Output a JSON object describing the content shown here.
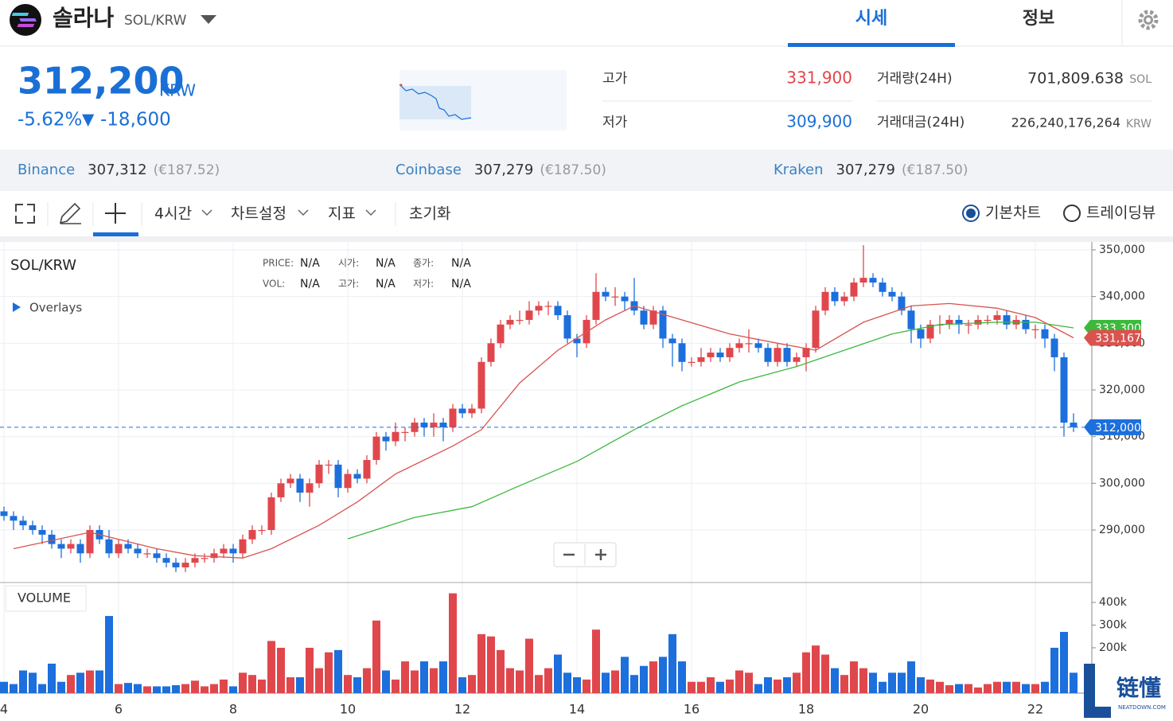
{
  "header": {
    "name": "솔라나",
    "pair": "SOL/KRW",
    "tabs": [
      "시세",
      "정보"
    ]
  },
  "price": {
    "value": "312,200",
    "unit": "KRW",
    "change_pct": "-5.62%",
    "arrow": "▼",
    "change": "-18,600"
  },
  "stats": [
    {
      "label": "고가",
      "value": "331,900"
    },
    {
      "label": "저가",
      "value": "309,900"
    },
    {
      "label": "거래량(24H)",
      "value": "701,809.638",
      "unit": "SOL"
    },
    {
      "label": "거래대금(24H)",
      "value": "226,240,176,264",
      "unit": "KRW"
    }
  ],
  "exchanges": [
    {
      "name": "Binance",
      "price": "307,312",
      "eur": "(€187.52)"
    },
    {
      "name": "Coinbase",
      "price": "307,279",
      "eur": "(€187.50)"
    },
    {
      "name": "Kraken",
      "price": "307,279",
      "eur": "(€187.50)"
    }
  ],
  "toolbar": {
    "interval": "4시간",
    "settings": "차트설정",
    "indicators": "지표",
    "reset": "초기화",
    "modes": [
      "기본차트",
      "트레이딩뷰"
    ]
  },
  "watermark": {
    "cn": "链懂",
    "en": "NEATDOWN.COM"
  },
  "chart_data": {
    "type": "candlestick",
    "title": "SOL/KRW",
    "overlays": "Overlays",
    "volume_label": "VOLUME",
    "info": [
      [
        "PRICE:",
        "N/A",
        "시가:",
        "N/A",
        "종가:",
        "N/A"
      ],
      [
        "VOL:",
        "N/A",
        "고가:",
        "N/A",
        "저가:",
        "N/A"
      ]
    ],
    "candles": [
      [
        294000,
        295000,
        292000,
        293000
      ],
      [
        293000,
        294000,
        290000,
        292000
      ],
      [
        292000,
        293000,
        290000,
        291000
      ],
      [
        291000,
        292000,
        289000,
        290000
      ],
      [
        290000,
        291000,
        287000,
        289000
      ],
      [
        289000,
        290000,
        286000,
        287000
      ],
      [
        287000,
        288000,
        284000,
        286000
      ],
      [
        286000,
        288000,
        285000,
        287000
      ],
      [
        287000,
        288000,
        283000,
        285000
      ],
      [
        285000,
        291000,
        284000,
        290000
      ],
      [
        290000,
        291000,
        287000,
        288000
      ],
      [
        288000,
        290000,
        284000,
        285000
      ],
      [
        285000,
        288000,
        284000,
        287000
      ],
      [
        287000,
        288000,
        285000,
        286000
      ],
      [
        286000,
        287000,
        284000,
        285000
      ],
      [
        285000,
        286000,
        284000,
        285000
      ],
      [
        285000,
        286000,
        283000,
        284000
      ],
      [
        284000,
        285000,
        282000,
        283000
      ],
      [
        283000,
        284000,
        281000,
        282000
      ],
      [
        282000,
        284000,
        281000,
        283000
      ],
      [
        283000,
        285000,
        282000,
        284000
      ],
      [
        284000,
        285000,
        283000,
        284000
      ],
      [
        284000,
        286000,
        283000,
        285000
      ],
      [
        285000,
        287000,
        284000,
        286000
      ],
      [
        286000,
        287000,
        283000,
        285000
      ],
      [
        285000,
        289000,
        284000,
        288000
      ],
      [
        288000,
        291000,
        287000,
        290000
      ],
      [
        290000,
        291000,
        289000,
        290000
      ],
      [
        290000,
        298000,
        289000,
        297000
      ],
      [
        297000,
        301000,
        296000,
        300000
      ],
      [
        300000,
        302000,
        299000,
        301000
      ],
      [
        301000,
        302000,
        296000,
        298000
      ],
      [
        298000,
        301000,
        295000,
        300000
      ],
      [
        300000,
        305000,
        299000,
        304000
      ],
      [
        304000,
        305000,
        302000,
        304000
      ],
      [
        304000,
        305000,
        297000,
        299000
      ],
      [
        299000,
        303000,
        298000,
        302000
      ],
      [
        302000,
        303000,
        300000,
        301000
      ],
      [
        301000,
        306000,
        300000,
        305000
      ],
      [
        305000,
        311000,
        304000,
        310000
      ],
      [
        310000,
        311000,
        307000,
        309000
      ],
      [
        309000,
        313000,
        308000,
        311000
      ],
      [
        311000,
        312000,
        309000,
        311000
      ],
      [
        311000,
        314000,
        310000,
        313000
      ],
      [
        313000,
        314000,
        310000,
        312000
      ],
      [
        312000,
        315000,
        310000,
        313000
      ],
      [
        313000,
        314000,
        309000,
        312000
      ],
      [
        312000,
        317000,
        311000,
        316000
      ],
      [
        316000,
        317000,
        314000,
        315000
      ],
      [
        315000,
        317000,
        314000,
        316000
      ],
      [
        316000,
        327000,
        315000,
        326000
      ],
      [
        326000,
        331000,
        325000,
        330000
      ],
      [
        330000,
        335000,
        329000,
        334000
      ],
      [
        334000,
        336000,
        333000,
        335000
      ],
      [
        335000,
        337000,
        334000,
        335000
      ],
      [
        335000,
        339000,
        334000,
        337000
      ],
      [
        337000,
        339000,
        336000,
        338000
      ],
      [
        338000,
        339000,
        336000,
        338000
      ],
      [
        338000,
        339000,
        335000,
        336000
      ],
      [
        336000,
        337000,
        330000,
        331000
      ],
      [
        331000,
        332000,
        327000,
        330000
      ],
      [
        330000,
        336000,
        329000,
        335000
      ],
      [
        335000,
        345000,
        334000,
        341000
      ],
      [
        341000,
        342000,
        339000,
        340000
      ],
      [
        340000,
        342000,
        338000,
        340000
      ],
      [
        340000,
        341000,
        337000,
        339000
      ],
      [
        339000,
        344000,
        336000,
        337000
      ],
      [
        337000,
        338000,
        333000,
        334000
      ],
      [
        334000,
        338000,
        333000,
        337000
      ],
      [
        337000,
        338000,
        329000,
        331000
      ],
      [
        331000,
        332000,
        325000,
        330000
      ],
      [
        330000,
        331000,
        324000,
        326000
      ],
      [
        326000,
        327000,
        325000,
        326000
      ],
      [
        326000,
        329000,
        325000,
        327000
      ],
      [
        327000,
        329000,
        326000,
        328000
      ],
      [
        328000,
        329000,
        326000,
        327000
      ],
      [
        327000,
        330000,
        326000,
        329000
      ],
      [
        329000,
        331000,
        328000,
        330000
      ],
      [
        330000,
        333000,
        328000,
        330000
      ],
      [
        330000,
        331000,
        328000,
        329000
      ],
      [
        329000,
        330000,
        325000,
        326000
      ],
      [
        326000,
        330000,
        325000,
        329000
      ],
      [
        329000,
        330000,
        325000,
        326000
      ],
      [
        326000,
        328000,
        325000,
        327000
      ],
      [
        327000,
        330000,
        324000,
        329000
      ],
      [
        329000,
        338000,
        328000,
        337000
      ],
      [
        337000,
        342000,
        336000,
        341000
      ],
      [
        341000,
        342000,
        338000,
        339000
      ],
      [
        339000,
        341000,
        338000,
        340000
      ],
      [
        340000,
        344000,
        339000,
        343000
      ],
      [
        343000,
        351000,
        342000,
        344000
      ],
      [
        344000,
        345000,
        342000,
        343000
      ],
      [
        343000,
        344000,
        340000,
        341000
      ],
      [
        341000,
        342000,
        339000,
        340000
      ],
      [
        340000,
        341000,
        336000,
        337000
      ],
      [
        337000,
        338000,
        330000,
        333000
      ],
      [
        333000,
        334000,
        329000,
        331000
      ],
      [
        331000,
        335000,
        330000,
        334000
      ],
      [
        334000,
        336000,
        332000,
        334000
      ],
      [
        334000,
        336000,
        333000,
        335000
      ],
      [
        335000,
        336000,
        332000,
        334000
      ],
      [
        334000,
        335000,
        332000,
        334000
      ],
      [
        334000,
        336000,
        333000,
        335000
      ],
      [
        335000,
        336000,
        334000,
        335000
      ],
      [
        335000,
        337000,
        334000,
        336000
      ],
      [
        336000,
        337000,
        333000,
        334000
      ],
      [
        334000,
        336000,
        333000,
        335000
      ],
      [
        335000,
        336000,
        332000,
        333000
      ],
      [
        333000,
        334000,
        331000,
        333000
      ],
      [
        333000,
        334000,
        329000,
        331000
      ],
      [
        331000,
        332000,
        324000,
        327000
      ],
      [
        327000,
        328000,
        310000,
        313000
      ],
      [
        313000,
        315000,
        311000,
        312000
      ]
    ],
    "volumes": [
      50000,
      40000,
      100000,
      90000,
      40000,
      130000,
      50000,
      80000,
      90000,
      100000,
      100000,
      340000,
      40000,
      45000,
      40000,
      30000,
      30000,
      30000,
      35000,
      40000,
      55000,
      30000,
      40000,
      60000,
      30000,
      90000,
      80000,
      60000,
      230000,
      200000,
      70000,
      70000,
      200000,
      110000,
      180000,
      190000,
      80000,
      70000,
      110000,
      320000,
      100000,
      60000,
      140000,
      100000,
      140000,
      110000,
      140000,
      440000,
      70000,
      80000,
      260000,
      250000,
      190000,
      110000,
      100000,
      240000,
      80000,
      110000,
      170000,
      90000,
      70000,
      60000,
      280000,
      90000,
      100000,
      160000,
      80000,
      120000,
      140000,
      160000,
      260000,
      140000,
      50000,
      50000,
      70000,
      50000,
      60000,
      100000,
      90000,
      40000,
      70000,
      60000,
      70000,
      90000,
      180000,
      210000,
      170000,
      110000,
      80000,
      140000,
      110000,
      90000,
      50000,
      90000,
      90000,
      140000,
      70000,
      60000,
      50000,
      35000,
      40000,
      40000,
      25000,
      40000,
      50000,
      50000,
      50000,
      40000,
      40000,
      50000,
      200000,
      270000,
      90000
    ],
    "ma": [
      {
        "color": "#d9534f",
        "x": [
          1,
          9,
          16,
          20,
          25,
          28,
          33,
          37,
          41,
          47,
          50,
          54,
          58,
          63,
          66,
          71,
          76,
          81,
          85,
          90,
          95,
          99,
          104,
          108,
          112
        ],
        "values": [
          286000,
          289500,
          286000,
          284500,
          284000,
          286000,
          291000,
          296000,
          302000,
          308000,
          311500,
          321500,
          328500,
          335000,
          338000,
          335000,
          332000,
          330000,
          328500,
          334500,
          338000,
          338500,
          337500,
          335500,
          331167
        ],
        "tag": "331,167"
      },
      {
        "color": "#3cb93c",
        "x": [
          36,
          43,
          49,
          54,
          60,
          66,
          71,
          77,
          83,
          88,
          93,
          98,
          104,
          108,
          112
        ],
        "values": [
          288100,
          292700,
          295000,
          299500,
          304700,
          311500,
          316600,
          321700,
          325000,
          328500,
          332000,
          334000,
          334500,
          334500,
          333300
        ],
        "tag": "333,300"
      }
    ],
    "price_line": {
      "value": 312000,
      "label": "312,000"
    },
    "ylim": [
      278750,
      351700
    ],
    "yticks": [
      {
        "value": 350000,
        "label": "350,000"
      },
      {
        "value": 340000,
        "label": "340,000"
      },
      {
        "value": 330000,
        "label": "330,000"
      },
      {
        "value": 320000,
        "label": "320,000"
      },
      {
        "value": 310000,
        "label": "310,000"
      },
      {
        "value": 300000,
        "label": "300,000"
      },
      {
        "value": 290000,
        "label": "290,000"
      }
    ],
    "vlim": [
      0,
      484000
    ],
    "vticks": [
      {
        "value": 400000,
        "label": "400k"
      },
      {
        "value": 300000,
        "label": "300k"
      },
      {
        "value": 200000,
        "label": "200k"
      }
    ],
    "xticks": [
      {
        "value": 0,
        "label": "4"
      },
      {
        "value": 12,
        "label": "6"
      },
      {
        "value": 24,
        "label": "8"
      },
      {
        "value": 36,
        "label": "10"
      },
      {
        "value": 48,
        "label": "12"
      },
      {
        "value": 60,
        "label": "14"
      },
      {
        "value": 72,
        "label": "16"
      },
      {
        "value": 84,
        "label": "18"
      },
      {
        "value": 96,
        "label": "20"
      },
      {
        "value": 108,
        "label": "22"
      }
    ],
    "grid": true,
    "up_color": "#e0474c",
    "down_color": "#1c6fdc"
  }
}
